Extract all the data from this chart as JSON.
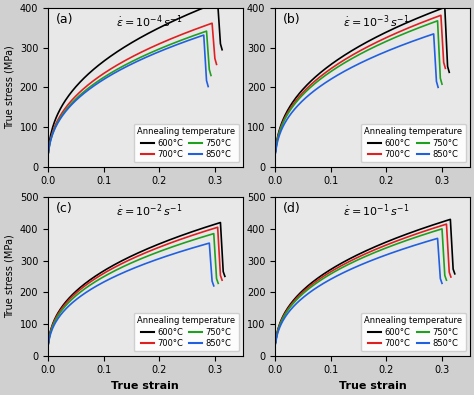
{
  "subplots": [
    {
      "label": "(a)",
      "strain_rate": "$\\dot{\\varepsilon}=10^{-4}\\,s^{-1}$",
      "ylim": [
        0,
        400
      ],
      "yticks": [
        0,
        100,
        200,
        300,
        400
      ],
      "curves": [
        {
          "temp": "600°C",
          "color": "#000000",
          "peak_strain": 0.305,
          "peak_stress": 415,
          "drop_stress": 295
        },
        {
          "temp": "700°C",
          "color": "#e02020",
          "peak_strain": 0.295,
          "peak_stress": 362,
          "drop_stress": 258
        },
        {
          "temp": "750°C",
          "color": "#20a020",
          "peak_strain": 0.285,
          "peak_stress": 342,
          "drop_stress": 230
        },
        {
          "temp": "850°C",
          "color": "#2060e0",
          "peak_strain": 0.28,
          "peak_stress": 332,
          "drop_stress": 202
        }
      ]
    },
    {
      "label": "(b)",
      "strain_rate": "$\\dot{\\varepsilon}=10^{-3}\\,s^{-1}$",
      "ylim": [
        0,
        400
      ],
      "yticks": [
        0,
        100,
        200,
        300,
        400
      ],
      "curves": [
        {
          "temp": "600°C",
          "color": "#000000",
          "peak_strain": 0.305,
          "peak_stress": 402,
          "drop_stress": 238
        },
        {
          "temp": "700°C",
          "color": "#e02020",
          "peak_strain": 0.298,
          "peak_stress": 382,
          "drop_stress": 248
        },
        {
          "temp": "750°C",
          "color": "#20a020",
          "peak_strain": 0.292,
          "peak_stress": 368,
          "drop_stress": 208
        },
        {
          "temp": "850°C",
          "color": "#2060e0",
          "peak_strain": 0.285,
          "peak_stress": 335,
          "drop_stress": 200
        }
      ]
    },
    {
      "label": "(c)",
      "strain_rate": "$\\dot{\\varepsilon}=10^{-2}\\,s^{-1}$",
      "ylim": [
        0,
        500
      ],
      "yticks": [
        0,
        100,
        200,
        300,
        400,
        500
      ],
      "curves": [
        {
          "temp": "600°C",
          "color": "#000000",
          "peak_strain": 0.31,
          "peak_stress": 420,
          "drop_stress": 250
        },
        {
          "temp": "700°C",
          "color": "#e02020",
          "peak_strain": 0.305,
          "peak_stress": 405,
          "drop_stress": 238
        },
        {
          "temp": "750°C",
          "color": "#20a020",
          "peak_strain": 0.298,
          "peak_stress": 385,
          "drop_stress": 228
        },
        {
          "temp": "850°C",
          "color": "#2060e0",
          "peak_strain": 0.29,
          "peak_stress": 355,
          "drop_stress": 220
        }
      ]
    },
    {
      "label": "(d)",
      "strain_rate": "$\\dot{\\varepsilon}=10^{-1}\\,s^{-1}$",
      "ylim": [
        0,
        500
      ],
      "yticks": [
        0,
        100,
        200,
        300,
        400,
        500
      ],
      "curves": [
        {
          "temp": "600°C",
          "color": "#000000",
          "peak_strain": 0.315,
          "peak_stress": 430,
          "drop_stress": 258
        },
        {
          "temp": "700°C",
          "color": "#e02020",
          "peak_strain": 0.308,
          "peak_stress": 415,
          "drop_stress": 248
        },
        {
          "temp": "750°C",
          "color": "#20a020",
          "peak_strain": 0.3,
          "peak_stress": 400,
          "drop_stress": 238
        },
        {
          "temp": "850°C",
          "color": "#2060e0",
          "peak_strain": 0.292,
          "peak_stress": 370,
          "drop_stress": 228
        }
      ]
    }
  ],
  "legend_title": "Annealing temperature",
  "xlabel": "True strain",
  "ylabel": "True stress (MPa)",
  "xticks": [
    0.0,
    0.1,
    0.2,
    0.3
  ],
  "xlim": [
    0.0,
    0.35
  ]
}
